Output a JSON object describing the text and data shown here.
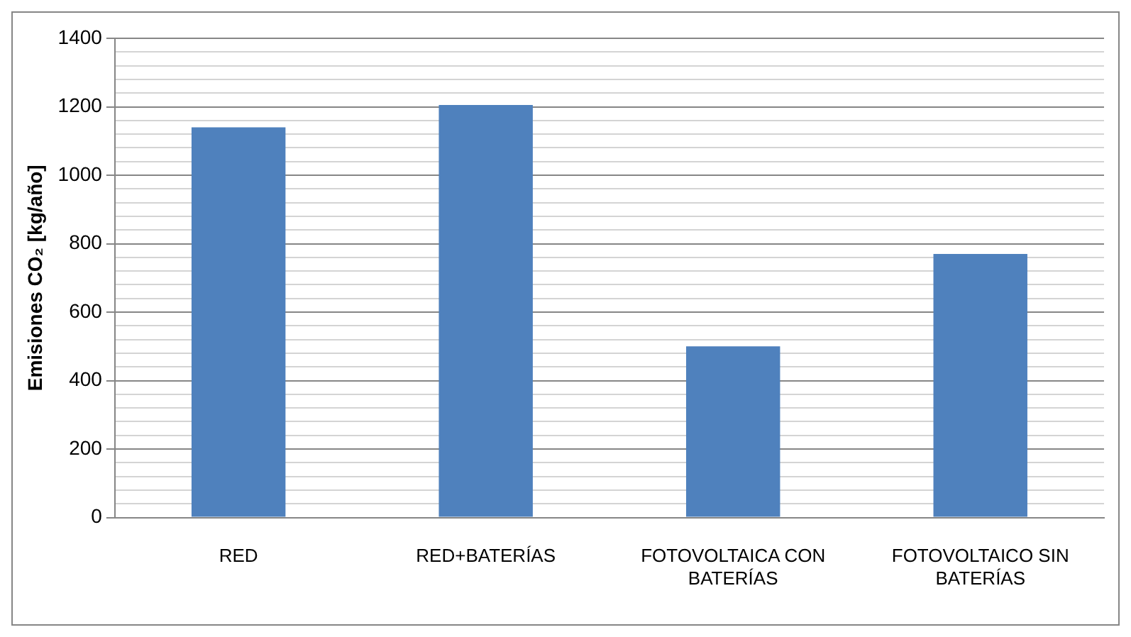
{
  "chart_data": {
    "type": "bar",
    "ylabel": "Emisiones CO₂ [kg/año]",
    "categories": [
      "RED",
      "RED+BATERÍAS",
      "FOTOVOLTAICA CON BATERÍAS",
      "FOTOVOLTAICO SIN BATERÍAS"
    ],
    "values": [
      1140,
      1205,
      500,
      770
    ],
    "color": "#4f81bd",
    "ylim": [
      0,
      1400
    ],
    "yticks": [
      0,
      {
        "value": 40,
        "label": null
      },
      {
        "value": 80,
        "label": null
      },
      {
        "value": 120,
        "label": null
      },
      {
        "value": 160,
        "label": null
      },
      200,
      {
        "value": 240,
        "label": null
      },
      {
        "value": 280,
        "label": null
      },
      {
        "value": 320,
        "label": null
      },
      {
        "value": 360,
        "label": null
      },
      400,
      {
        "value": 440,
        "label": null
      },
      {
        "value": 480,
        "label": null
      },
      {
        "value": 520,
        "label": null
      },
      {
        "value": 560,
        "label": null
      },
      600,
      {
        "value": 640,
        "label": null
      },
      {
        "value": 680,
        "label": null
      },
      {
        "value": 720,
        "label": null
      },
      {
        "value": 760,
        "label": null
      },
      800,
      {
        "value": 840,
        "label": null
      },
      {
        "value": 880,
        "label": null
      },
      {
        "value": 920,
        "label": null
      },
      {
        "value": 960,
        "label": null
      },
      1000,
      {
        "value": 1040,
        "label": null
      },
      {
        "value": 1080,
        "label": null
      },
      {
        "value": 1120,
        "label": null
      },
      {
        "value": 1160,
        "label": null
      },
      1200,
      {
        "value": 1240,
        "label": null
      },
      {
        "value": 1280,
        "label": null
      },
      {
        "value": 1320,
        "label": null
      },
      {
        "value": 1360,
        "label": null
      },
      1400
    ],
    "grid": "y",
    "legend": false
  }
}
